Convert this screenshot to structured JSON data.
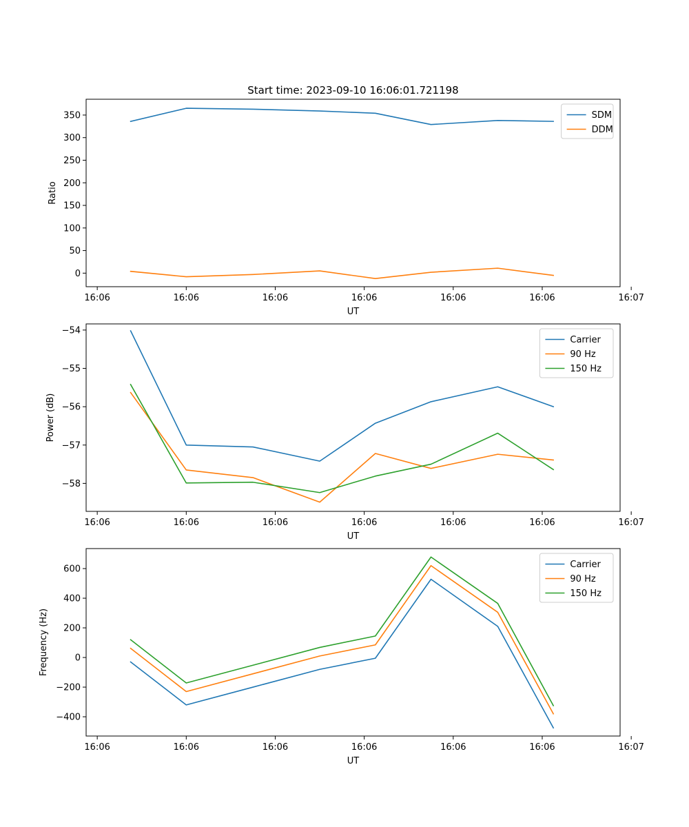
{
  "colors": {
    "series1": "#1f77b4",
    "series2": "#ff7f0e",
    "series3": "#2ca02c",
    "axis": "#000000",
    "legend_border": "#cccccc",
    "background": "#ffffff"
  },
  "chart_data": [
    {
      "type": "line",
      "title": "Start time: 2023-09-10 16:06:01.721198",
      "xlabel": "UT",
      "ylabel": "Ratio",
      "xlim": [
        -0.125,
        5.875
      ],
      "ylim": [
        -30,
        385
      ],
      "x": [
        0.375,
        1,
        1.75,
        2.5,
        3.125,
        3.75,
        4.5,
        5.125
      ],
      "xticks": [
        0,
        1,
        2,
        3,
        4,
        5,
        6
      ],
      "xtick_labels": [
        "16:06",
        "16:06",
        "16:06",
        "16:06",
        "16:06",
        "16:06",
        "16:07"
      ],
      "yticks": [
        0,
        50,
        100,
        150,
        200,
        250,
        300,
        350
      ],
      "ytick_labels": [
        "0",
        "50",
        "100",
        "150",
        "200",
        "250",
        "300",
        "350"
      ],
      "legend_position": "top-right",
      "grid": false,
      "series": [
        {
          "name": "SDM",
          "color_key": "series1",
          "values": [
            336,
            365,
            363,
            359,
            354,
            329,
            338,
            336
          ]
        },
        {
          "name": "DDM",
          "color_key": "series2",
          "values": [
            4,
            -8,
            -3,
            5,
            -12,
            2,
            11,
            -5
          ]
        }
      ]
    },
    {
      "type": "line",
      "title": "",
      "xlabel": "UT",
      "ylabel": "Power (dB)",
      "xlim": [
        -0.125,
        5.875
      ],
      "ylim": [
        -58.73,
        -53.84
      ],
      "x": [
        0.375,
        1,
        1.75,
        2.5,
        3.125,
        3.75,
        4.5,
        5.125
      ],
      "xticks": [
        0,
        1,
        2,
        3,
        4,
        5,
        6
      ],
      "xtick_labels": [
        "16:06",
        "16:06",
        "16:06",
        "16:06",
        "16:06",
        "16:06",
        "16:07"
      ],
      "yticks": [
        -58,
        -57,
        -56,
        -55,
        -54
      ],
      "ytick_labels": [
        "−58",
        "−57",
        "−56",
        "−55",
        "−54"
      ],
      "legend_position": "top-right",
      "grid": false,
      "series": [
        {
          "name": "Carrier",
          "color_key": "series1",
          "values": [
            -54.02,
            -57.0,
            -57.05,
            -57.42,
            -56.43,
            -55.87,
            -55.48,
            -56.0
          ]
        },
        {
          "name": "90 Hz",
          "color_key": "series2",
          "values": [
            -55.63,
            -57.65,
            -57.85,
            -58.49,
            -57.22,
            -57.61,
            -57.24,
            -57.39
          ]
        },
        {
          "name": "150 Hz",
          "color_key": "series3",
          "values": [
            -55.42,
            -57.99,
            -57.97,
            -58.24,
            -57.81,
            -57.5,
            -56.69,
            -57.64
          ]
        }
      ]
    },
    {
      "type": "line",
      "title": "",
      "xlabel": "UT",
      "ylabel": "Frequency (Hz)",
      "xlim": [
        -0.125,
        5.875
      ],
      "ylim": [
        -530,
        735
      ],
      "x": [
        0.375,
        1,
        1.75,
        2.5,
        3.125,
        3.75,
        4.5,
        5.125
      ],
      "xticks": [
        0,
        1,
        2,
        3,
        4,
        5,
        6
      ],
      "xtick_labels": [
        "16:06",
        "16:06",
        "16:06",
        "16:06",
        "16:06",
        "16:06",
        "16:07"
      ],
      "yticks": [
        -400,
        -200,
        0,
        200,
        400,
        600
      ],
      "ytick_labels": [
        "−400",
        "−200",
        "0",
        "200",
        "400",
        "600"
      ],
      "legend_position": "top-right",
      "grid": false,
      "series": [
        {
          "name": "Carrier",
          "color_key": "series1",
          "values": [
            -30,
            -320,
            -200,
            -80,
            -5,
            528,
            210,
            -475
          ]
        },
        {
          "name": "90 Hz",
          "color_key": "series2",
          "values": [
            62,
            -230,
            -110,
            10,
            85,
            620,
            305,
            -380
          ]
        },
        {
          "name": "150 Hz",
          "color_key": "series3",
          "values": [
            120,
            -172,
            -52,
            68,
            145,
            678,
            365,
            -325
          ]
        }
      ]
    }
  ]
}
